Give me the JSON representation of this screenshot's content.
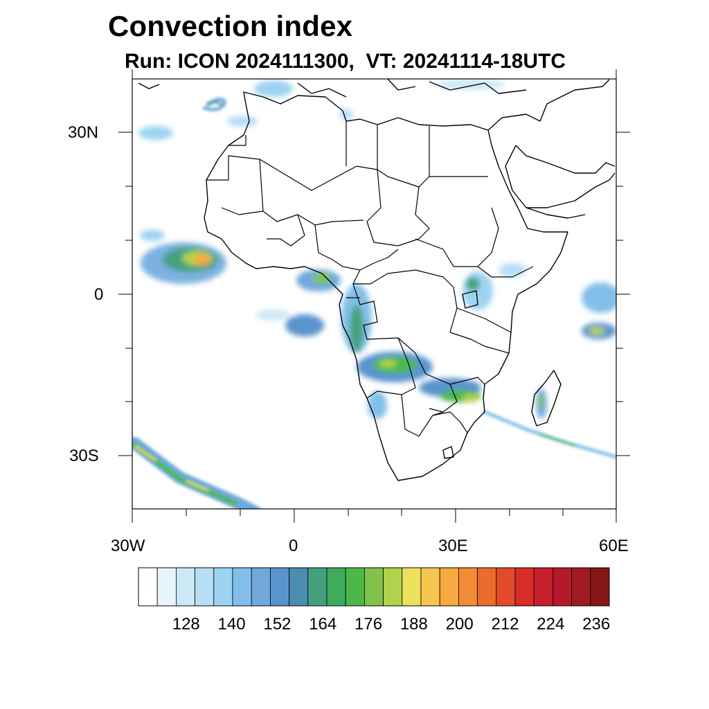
{
  "title": "Convection index",
  "subtitle": "Run: ICON 2024111300,  VT: 20241114-18UTC",
  "axes": {
    "x_ticks": [
      "30W",
      "0",
      "30E",
      "60E"
    ],
    "y_ticks": [
      "30N",
      "0",
      "30S"
    ]
  },
  "colorbar": {
    "labels": [
      "128",
      "140",
      "152",
      "164",
      "176",
      "188",
      "200",
      "212",
      "224",
      "236"
    ],
    "colors": [
      "#ffffff",
      "#e8f4fb",
      "#cde8f6",
      "#b6def5",
      "#9dd3f2",
      "#82bfe8",
      "#6fa9dc",
      "#5a94cd",
      "#4a8db0",
      "#44a17f",
      "#3dab5c",
      "#4db84a",
      "#82c24a",
      "#b2d14d",
      "#ede05a",
      "#f7c64e",
      "#f6a941",
      "#f28c36",
      "#ed6a2d",
      "#e24a29",
      "#d62d28",
      "#c71f2c",
      "#b51a2a",
      "#9f1a22",
      "#861717"
    ]
  }
}
